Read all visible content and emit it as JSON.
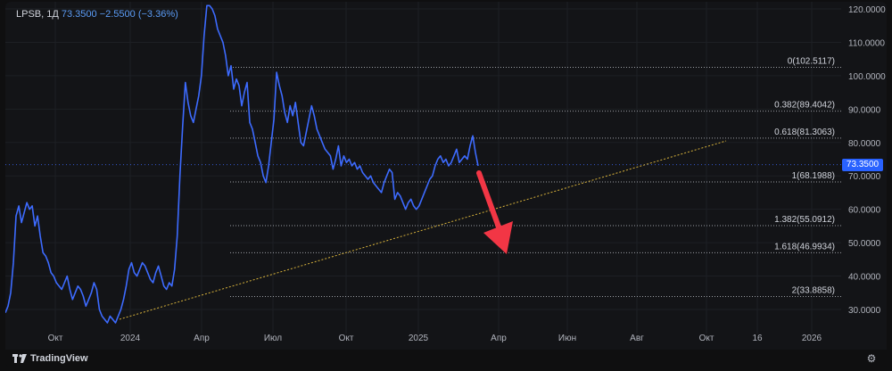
{
  "header": {
    "symbol": "LPSB, 1Д",
    "price": "73.3500",
    "change": "−2.5500 (−3.36%)"
  },
  "footer": {
    "brand": "TradingView"
  },
  "price_badge": "73.3500",
  "colors": {
    "price_line": "#3d6bff",
    "trendline": "#d7b23b",
    "arrow": "#f23645",
    "fib_line": "#c9ccd3",
    "badge": "#2962ff"
  },
  "chart_data": {
    "type": "line",
    "title": "LPSB, 1Д",
    "x_ticks": [
      "Окт",
      "2024",
      "Апр",
      "Июл",
      "Окт",
      "2025",
      "Апр",
      "Июн",
      "Авг",
      "Окт",
      "16",
      "2026"
    ],
    "y_ticks": [
      "120.0000",
      "110.0000",
      "100.0000",
      "90.0000",
      "80.0000",
      "70.0000",
      "60.0000",
      "50.0000",
      "40.0000",
      "30.0000"
    ],
    "ylim": [
      24,
      121
    ],
    "series": [
      {
        "values": [
          29,
          31,
          35,
          44,
          58,
          61,
          56,
          59,
          62,
          60,
          61,
          55,
          58,
          52,
          47,
          46,
          44,
          41,
          40,
          38,
          37,
          36,
          38,
          40,
          36,
          33,
          35,
          37,
          36,
          34,
          31,
          33,
          35,
          38,
          36,
          30,
          28,
          27,
          26,
          28,
          27,
          26,
          28,
          30,
          33,
          37,
          42,
          44,
          41,
          40,
          42,
          44,
          43,
          41,
          39,
          38,
          41,
          43,
          40,
          37,
          36,
          38,
          37,
          42,
          52,
          70,
          85,
          98,
          92,
          88,
          86,
          90,
          94,
          100,
          112,
          121,
          121,
          120,
          118,
          114,
          112,
          110,
          106,
          100,
          103,
          96,
          99,
          97,
          91,
          95,
          98,
          86,
          84,
          80,
          76,
          74,
          70,
          68,
          73,
          80,
          87,
          101,
          97,
          94,
          89,
          86,
          91,
          88,
          92,
          86,
          80,
          79,
          83,
          87,
          91,
          88,
          84,
          82,
          80,
          78,
          77,
          76,
          72,
          75,
          79,
          73,
          76,
          74,
          75,
          73,
          74,
          72,
          73,
          71,
          70,
          69,
          70,
          68,
          67,
          66,
          65,
          68,
          70,
          72,
          71,
          63,
          65,
          64,
          62,
          60,
          62,
          63,
          61,
          60,
          61,
          63,
          65,
          67,
          69,
          70,
          73,
          75,
          76,
          74,
          75,
          73,
          74,
          76,
          78,
          74,
          75,
          76,
          75,
          79,
          82,
          77,
          73
        ]
      }
    ],
    "fibonacci": [
      {
        "label": "0(102.5117)",
        "value": 102.5117
      },
      {
        "label": "0.382(89.4042)",
        "value": 89.4042
      },
      {
        "label": "0.618(81.3063)",
        "value": 81.3063
      },
      {
        "label": "1(68.1988)",
        "value": 68.1988
      },
      {
        "label": "1.382(55.0912)",
        "value": 55.0912
      },
      {
        "label": "1.618(46.9934)",
        "value": 46.9934
      },
      {
        "label": "2(33.8858)",
        "value": 33.8858
      }
    ],
    "last_price": 73.35,
    "grid": true
  }
}
